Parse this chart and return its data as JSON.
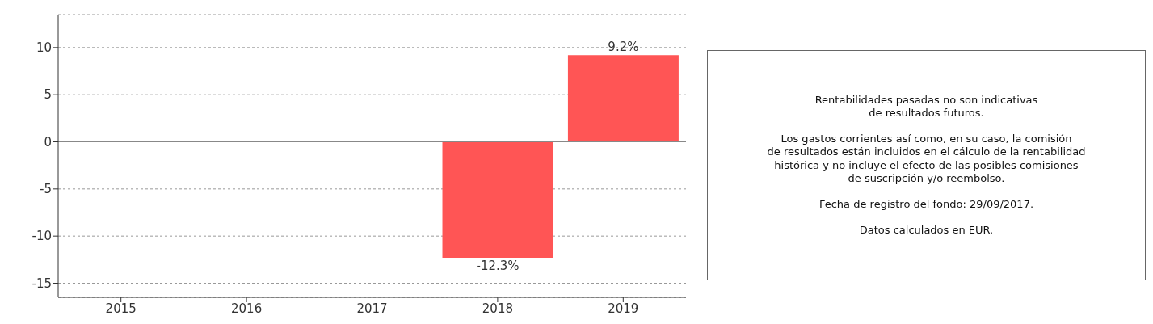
{
  "chart_data": {
    "type": "bar",
    "categories": [
      "2015",
      "2016",
      "2017",
      "2018",
      "2019"
    ],
    "values": [
      null,
      null,
      null,
      -12.3,
      9.2
    ],
    "value_labels": [
      null,
      null,
      null,
      "-12.3%",
      "9.2%"
    ],
    "color": "#ff5555",
    "ylim": [
      -16.5,
      13.5
    ],
    "yticks": [
      -15,
      -10,
      -5,
      0,
      5,
      10
    ],
    "grid": "y",
    "ref_lines": [
      {
        "axis": "y",
        "value": 0,
        "color": "#888888"
      }
    ],
    "annotations": [
      "Rentabilidades pasadas no son indicativas\nde resultados futuros.",
      "Los gastos corrientes así como, en su caso, la comisión\nde resultados están incluidos en el cálculo de la rentabilidad\nhistórica y no incluye el efecto de las posibles comisiones\nde suscripción y/o reembolso.",
      "Fecha de registro del fondo: 29/09/2017.",
      "Datos calculados en EUR."
    ]
  }
}
